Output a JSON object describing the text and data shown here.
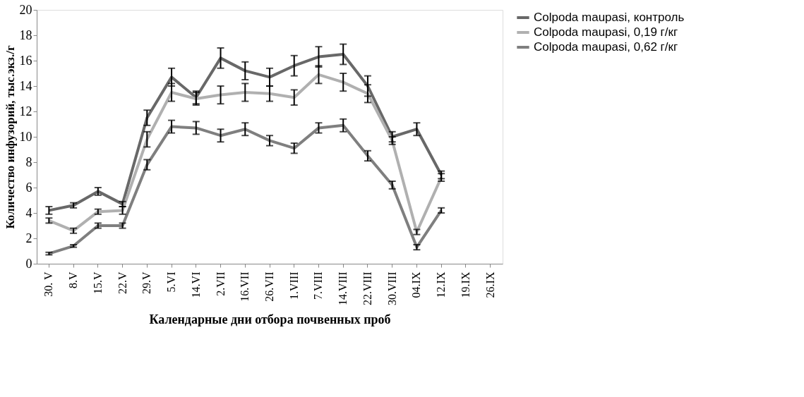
{
  "chart_data": {
    "type": "line",
    "xlabel": "Календарные дни отбора почвенных проб",
    "ylabel": "Количество инфузорий, тыс.экз./г",
    "categories": [
      "30. V",
      "8.V",
      "15.V",
      "22.V",
      "29.V",
      "5.VI",
      "14.VI",
      "2.VII",
      "16.VII",
      "26.VII",
      "1.VIII",
      "7.VIII",
      "14.VIII",
      "22.VIII",
      "30.VIII",
      "04.IX",
      "12.IX",
      "19.IX",
      "26.IX"
    ],
    "ylim": [
      0,
      20
    ],
    "yticks": [
      0,
      2,
      4,
      6,
      8,
      10,
      12,
      14,
      16,
      18,
      20
    ],
    "grid": false,
    "legend": "right",
    "marker": "none",
    "line_style": "solid",
    "series": [
      {
        "name": "Colpoda maupasi, контроль",
        "color": "#686868",
        "values": [
          4.2,
          4.6,
          5.7,
          4.7,
          11.5,
          14.7,
          13.1,
          16.2,
          15.2,
          14.7,
          15.6,
          16.3,
          16.5,
          14.0,
          10.0,
          10.6,
          7.0,
          null,
          null
        ],
        "errors": [
          0.3,
          0.2,
          0.3,
          0.2,
          0.6,
          0.7,
          0.5,
          0.8,
          0.7,
          0.7,
          0.8,
          0.8,
          0.8,
          0.8,
          0.4,
          0.5,
          0.3,
          null,
          null
        ]
      },
      {
        "name": "Colpoda maupasi, 0,19 г/кг",
        "color": "#b0b0b0",
        "values": [
          3.4,
          2.6,
          4.1,
          4.2,
          9.8,
          13.5,
          13.0,
          13.3,
          13.5,
          13.4,
          13.1,
          14.9,
          14.3,
          13.4,
          9.7,
          2.5,
          6.8,
          null,
          null
        ],
        "errors": [
          0.2,
          0.2,
          0.2,
          0.3,
          0.6,
          0.7,
          0.5,
          0.7,
          0.7,
          0.6,
          0.6,
          0.7,
          0.7,
          0.7,
          0.3,
          0.2,
          0.3,
          null,
          null
        ]
      },
      {
        "name": "Colpoda maupasi, 0,62 г/кг",
        "color": "#7f7f7f",
        "values": [
          0.8,
          1.4,
          3.0,
          3.0,
          7.8,
          10.8,
          10.7,
          10.1,
          10.6,
          9.7,
          9.1,
          10.7,
          10.9,
          8.5,
          6.2,
          1.3,
          4.2,
          null,
          null
        ],
        "errors": [
          0.1,
          0.1,
          0.2,
          0.2,
          0.4,
          0.5,
          0.5,
          0.5,
          0.5,
          0.4,
          0.4,
          0.4,
          0.5,
          0.4,
          0.3,
          0.2,
          0.2,
          null,
          null
        ]
      }
    ]
  }
}
